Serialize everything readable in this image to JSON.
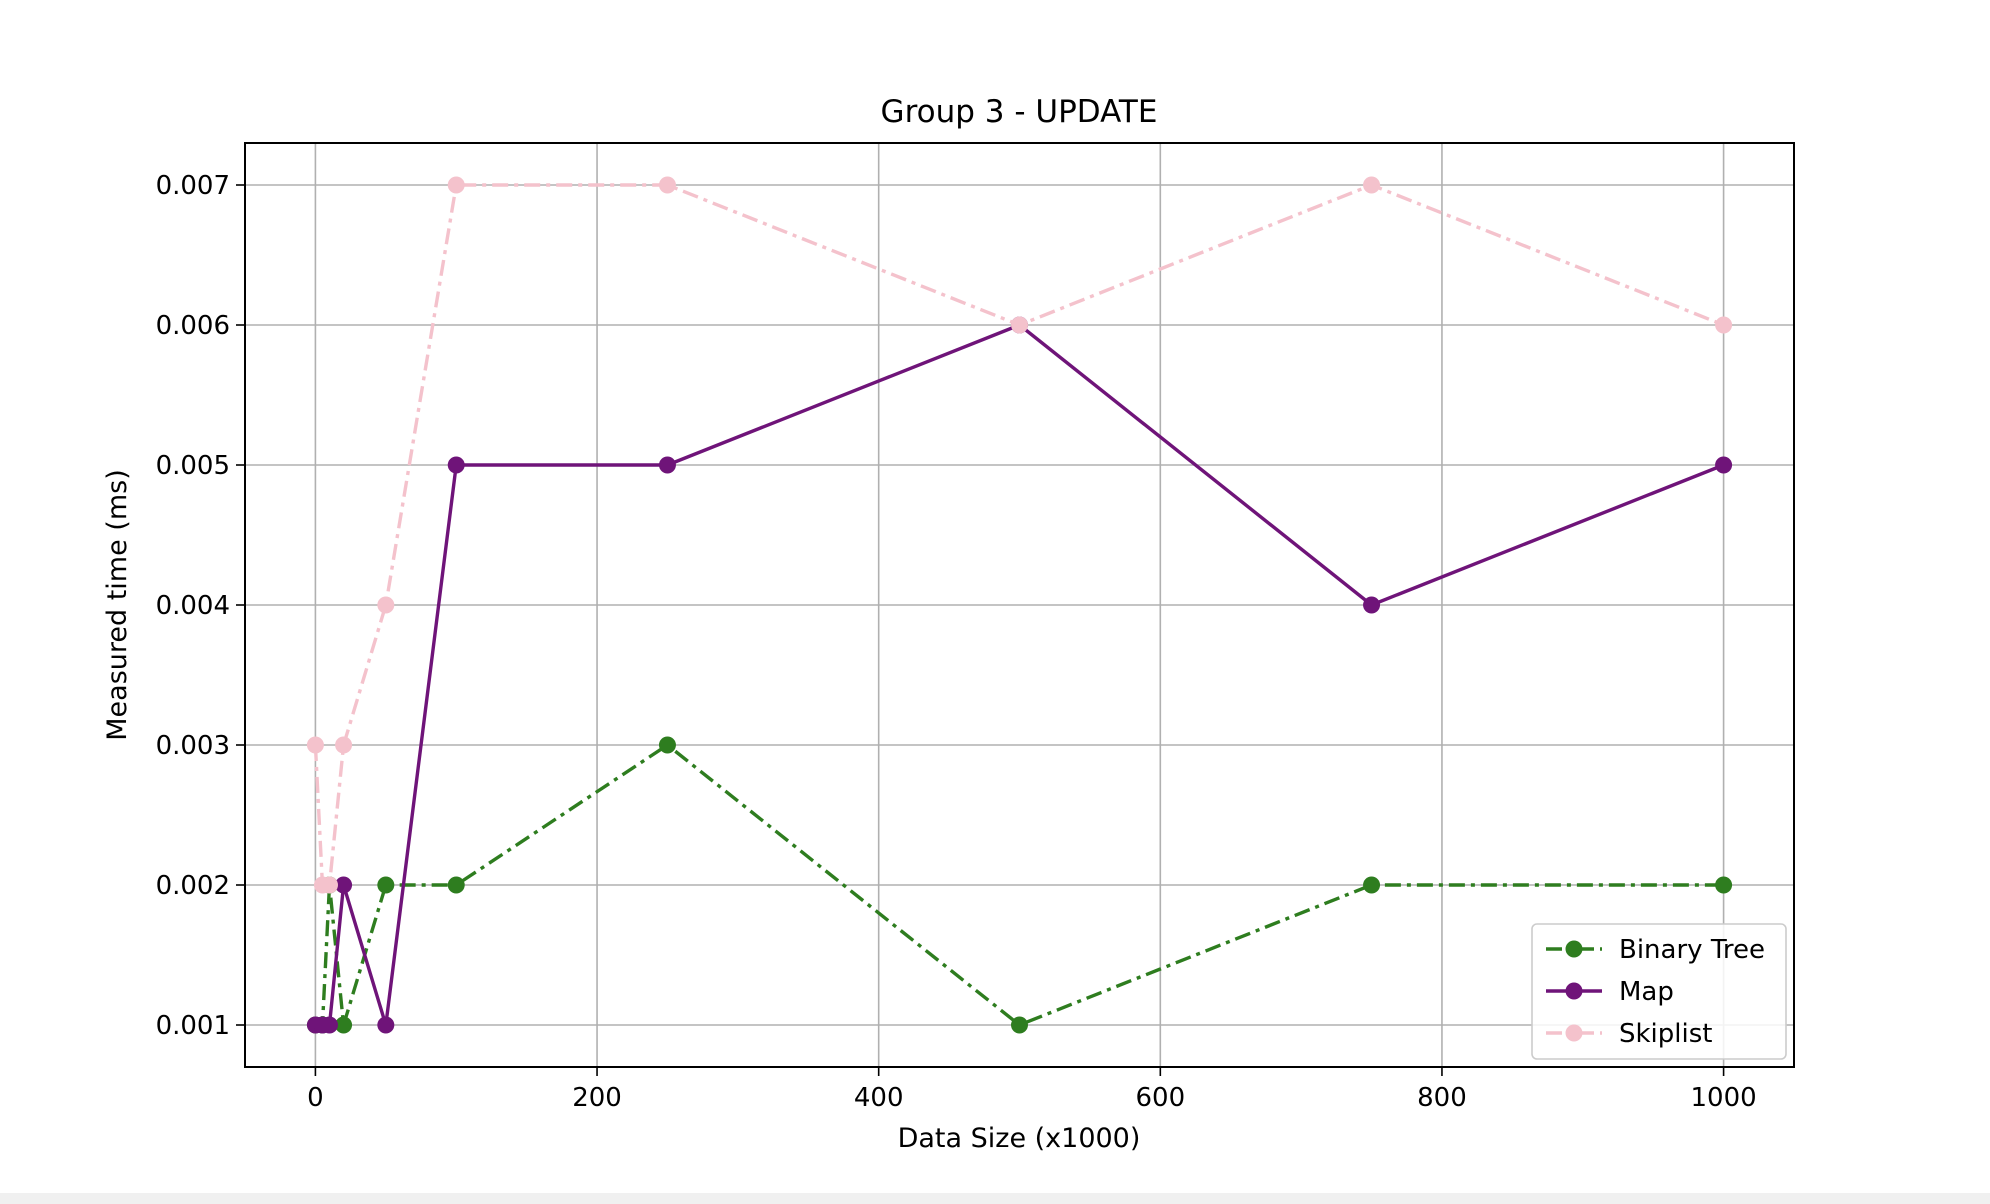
{
  "chart_data": {
    "type": "line",
    "title": "Group 3 - UPDATE",
    "xlabel": "Data Size (x1000)",
    "ylabel": "Measured time (ms)",
    "xlim": [
      -50,
      1050
    ],
    "ylim": [
      0.0007,
      0.0073
    ],
    "xticks": [
      0,
      200,
      400,
      600,
      800,
      1000
    ],
    "xtick_labels": [
      "0",
      "200",
      "400",
      "600",
      "800",
      "1000"
    ],
    "yticks": [
      0.001,
      0.002,
      0.003,
      0.004,
      0.005,
      0.006,
      0.007
    ],
    "ytick_labels": [
      "0.001",
      "0.002",
      "0.003",
      "0.004",
      "0.005",
      "0.006",
      "0.007"
    ],
    "grid": true,
    "legend_position": "lower-right",
    "x": [
      0,
      5,
      10,
      20,
      50,
      100,
      250,
      500,
      750,
      1000
    ],
    "series": [
      {
        "name": "Binary Tree",
        "color": "#2e7d1f",
        "linestyle": "dashdot",
        "values": [
          0.001,
          0.001,
          0.002,
          0.001,
          0.002,
          0.002,
          0.003,
          0.001,
          0.002,
          0.002
        ]
      },
      {
        "name": "Map",
        "color": "#6f1479",
        "linestyle": "solid",
        "values": [
          0.001,
          0.001,
          0.001,
          0.002,
          0.001,
          0.005,
          0.005,
          0.006,
          0.004,
          0.005
        ]
      },
      {
        "name": "Skiplist",
        "color": "#f4c2cc",
        "linestyle": "dashdot",
        "values": [
          0.003,
          0.002,
          0.002,
          0.003,
          0.004,
          0.007,
          0.007,
          0.006,
          0.007,
          0.006
        ]
      }
    ]
  }
}
